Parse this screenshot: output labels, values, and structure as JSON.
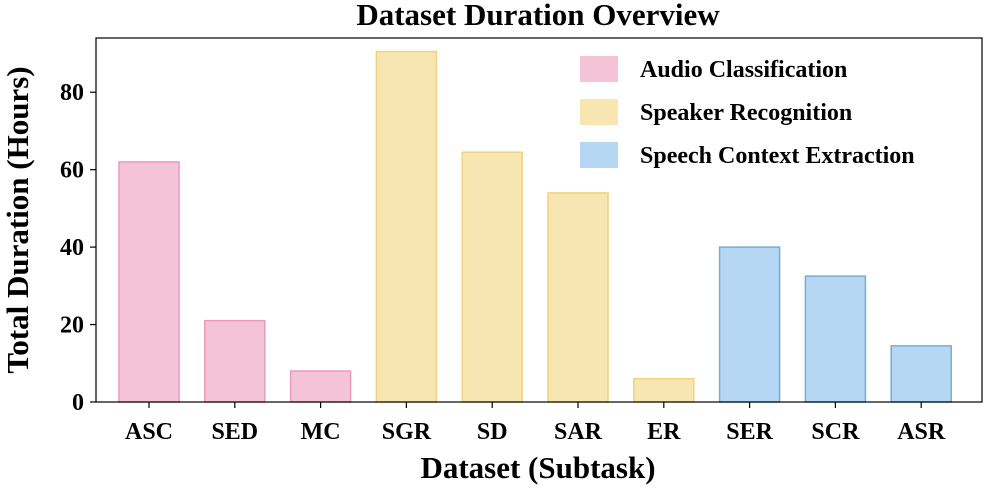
{
  "chart_data": {
    "type": "bar",
    "title": "Dataset Duration Overview",
    "xlabel": "Dataset (Subtask)",
    "ylabel": "Total Duration (Hours)",
    "ylim": [
      0,
      94
    ],
    "yticks": [
      0,
      20,
      40,
      60,
      80
    ],
    "grid": false,
    "legend_position": "top-right",
    "categories": [
      "ASC",
      "SED",
      "MC",
      "SGR",
      "SD",
      "SAR",
      "ER",
      "SER",
      "SCR",
      "ASR"
    ],
    "values": [
      62,
      21,
      8,
      90.5,
      64.5,
      54,
      6,
      40,
      32.5,
      14.5
    ],
    "groups": [
      "Audio Classification",
      "Audio Classification",
      "Audio Classification",
      "Speaker Recognition",
      "Speaker Recognition",
      "Speaker Recognition",
      "Speaker Recognition",
      "Speech Context Extraction",
      "Speech Context Extraction",
      "Speech Context Extraction"
    ],
    "legend": [
      {
        "name": "Audio Classification",
        "fill": "#f5c3d6",
        "stroke": "#e99bbb"
      },
      {
        "name": "Speaker Recognition",
        "fill": "#f7e6b2",
        "stroke": "#f0d27a"
      },
      {
        "name": "Speech Context Extraction",
        "fill": "#b6d7f3",
        "stroke": "#7aabd3"
      }
    ]
  }
}
